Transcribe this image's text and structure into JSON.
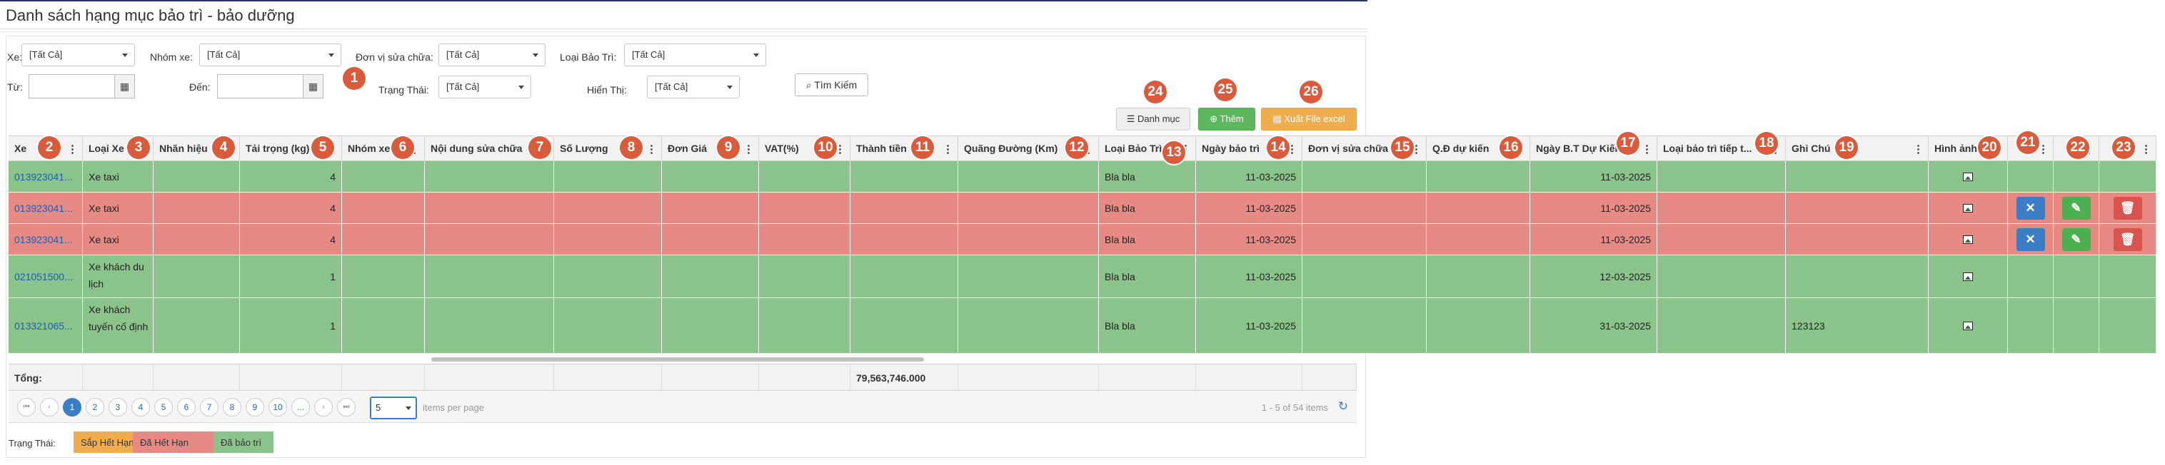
{
  "title": "Danh sách hạng mục bảo trì - bảo dưỡng",
  "filters": {
    "xe_label": "Xe:",
    "xe_value": "[Tất Cả]",
    "nhomxe_label": "Nhóm xe:",
    "nhomxe_value": "[Tất Cả]",
    "donvi_label": "Đơn vị sửa chữa:",
    "donvi_value": "[Tất Cả]",
    "loaibaotri_label": "Loại Bảo Trì:",
    "loaibaotri_value": "[Tất Cả]",
    "tu_label": "Từ:",
    "den_label": "Đến:",
    "trangthai_label": "Trạng Thái:",
    "trangthai_value": "[Tất Cả]",
    "hienthi_label": "Hiển Thị:",
    "hienthi_value": "[Tất Cả]",
    "search_label": "Tìm Kiếm"
  },
  "toolbar": {
    "danhmuc_label": "Danh mục",
    "them_label": "Thêm",
    "xuat_label": "Xuất File excel"
  },
  "badges": [
    "1",
    "2",
    "3",
    "4",
    "5",
    "6",
    "7",
    "8",
    "9",
    "10",
    "11",
    "12",
    "13",
    "14",
    "15",
    "16",
    "17",
    "18",
    "19",
    "20",
    "21",
    "22",
    "23",
    "24",
    "25",
    "26"
  ],
  "columns": [
    "Xe",
    "Loại Xe",
    "Nhãn hiệu",
    "Tải trọng (kg)",
    "Nhóm xe",
    "Nội dung sửa chữa",
    "Số Lượng",
    "Đơn Giá",
    "VAT(%)",
    "Thành tiền",
    "Quãng Đường (Km)",
    "Loại Bảo Trì",
    "Ngày bảo trì",
    "Đơn vị sửa chữa",
    "Q.Đ dự kiến",
    "Ngày B.T Dự Kiến",
    "Loại bảo trì tiếp t...",
    "Ghi Chú",
    "Hình ảnh",
    "",
    "",
    ""
  ],
  "rows": [
    {
      "status": "green",
      "xe": "013923041...",
      "loaixe": "Xe taxi",
      "taitrong": "4",
      "loaibaotri": "Bla bla",
      "ngaybaotri": "11-03-2025",
      "ngaydukien": "11-03-2025",
      "ghichu": "",
      "actions": false
    },
    {
      "status": "red",
      "xe": "013923041...",
      "loaixe": "Xe taxi",
      "taitrong": "4",
      "loaibaotri": "Bla bla",
      "ngaybaotri": "11-03-2025",
      "ngaydukien": "11-03-2025",
      "ghichu": "",
      "actions": true
    },
    {
      "status": "red",
      "xe": "013923041...",
      "loaixe": "Xe taxi",
      "taitrong": "4",
      "loaibaotri": "Bla bla",
      "ngaybaotri": "11-03-2025",
      "ngaydukien": "11-03-2025",
      "ghichu": "",
      "actions": true
    },
    {
      "status": "green",
      "xe": "021051500...",
      "loaixe": "Xe khách du lịch",
      "taitrong": "1",
      "loaibaotri": "Bla bla",
      "ngaybaotri": "11-03-2025",
      "ngaydukien": "12-03-2025",
      "ghichu": "",
      "actions": false
    },
    {
      "status": "green",
      "xe": "013321065...",
      "loaixe": "Xe khách tuyến cố định",
      "taitrong": "1",
      "loaibaotri": "Bla bla",
      "ngaybaotri": "11-03-2025",
      "ngaydukien": "31-03-2025",
      "ghichu": "123123",
      "actions": false
    }
  ],
  "footer": {
    "tong_label": "Tổng:",
    "thanhtien_total": "79,563,746.000"
  },
  "pager": {
    "pages": [
      "1",
      "2",
      "3",
      "4",
      "5",
      "6",
      "7",
      "8",
      "9",
      "10",
      "..."
    ],
    "per_page": "5",
    "per_page_text": "items per page",
    "range_text": "1 - 5 of 54 items"
  },
  "legend": {
    "label": "Trạng Thái:",
    "items": [
      "Sắp Hết Hạn",
      "Đã Hết Hạn",
      "Đã bảo trì"
    ]
  },
  "colors": {
    "green": "#8bc48a",
    "red": "#e88a84",
    "orange": "#f0ad4e",
    "badge": "#d95b3c"
  }
}
